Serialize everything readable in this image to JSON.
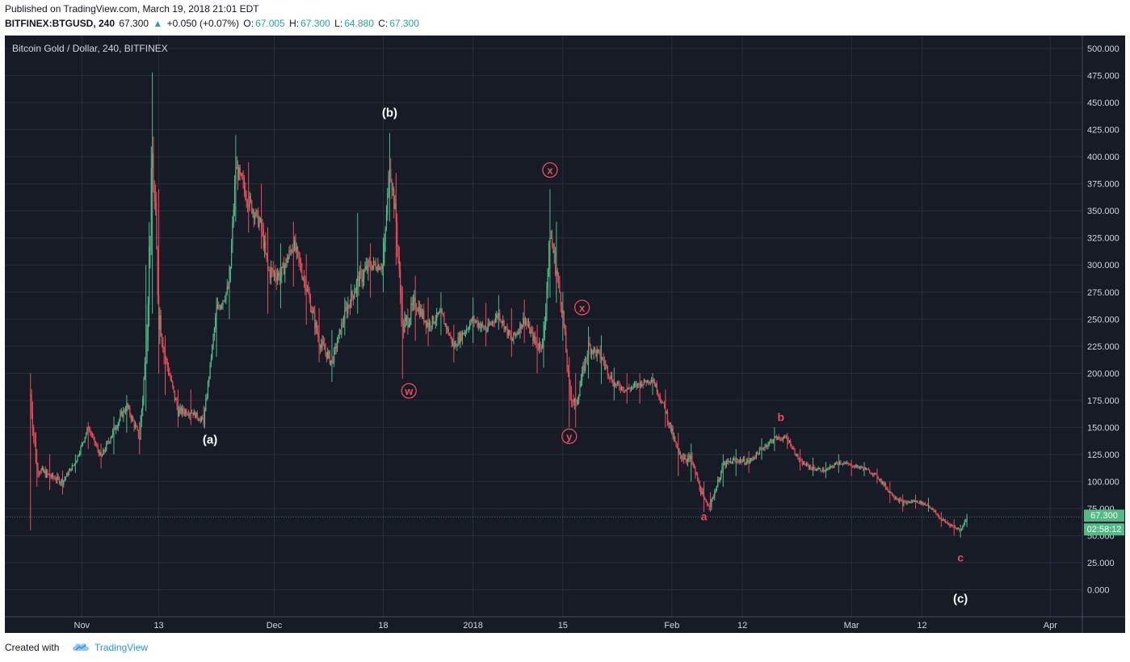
{
  "header": {
    "published": "Published on TradingView.com, March 19, 2018 21:01 EDT",
    "symbol": "BITFINEX:BTGUSD, 240",
    "last": "67.300",
    "change_arrow": "▲",
    "change": "+0.050 (+0.07%)",
    "o_label": "O:",
    "o_value": "67.005",
    "h_label": "H:",
    "h_value": "67.300",
    "l_label": "L:",
    "l_value": "64.880",
    "c_label": "C:",
    "c_value": "67.300"
  },
  "footer": {
    "created_with": "Created with",
    "brand": "TradingView",
    "logo_icon": "tradingview-cloud-icon"
  },
  "colors": {
    "background": "#171b26",
    "grid": "#2a2e39",
    "up": "#53b987",
    "down": "#eb4d5c",
    "wave_white": "#ffffff",
    "wave_red": "#eb4d5c",
    "price_tag": "#53b987"
  },
  "chart_data": {
    "type": "candlestick",
    "title": "Bitcoin Gold / Dollar, 240, BITFINEX",
    "ylim": [
      -25,
      512
    ],
    "yticks": [
      0,
      25,
      50,
      75,
      100,
      125,
      150,
      175,
      200,
      225,
      250,
      275,
      300,
      325,
      350,
      375,
      400,
      425,
      450,
      475,
      500
    ],
    "xlim": [
      "2017-10-20",
      "2018-04-06"
    ],
    "xticks": [
      {
        "date": "2017-11-01",
        "label": "Nov"
      },
      {
        "date": "2017-11-13",
        "label": "13"
      },
      {
        "date": "2017-12-01",
        "label": "Dec"
      },
      {
        "date": "2017-12-18",
        "label": "18"
      },
      {
        "date": "2018-01-01",
        "label": "2018"
      },
      {
        "date": "2018-01-15",
        "label": "15"
      },
      {
        "date": "2018-02-01",
        "label": "Feb"
      },
      {
        "date": "2018-02-12",
        "label": "12"
      },
      {
        "date": "2018-03-01",
        "label": "Mar"
      },
      {
        "date": "2018-03-12",
        "label": "12"
      },
      {
        "date": "2018-04-01",
        "label": "Apr"
      }
    ],
    "price_path": [
      {
        "date": "2017-10-24",
        "price": 180,
        "high": 200,
        "low": 55
      },
      {
        "date": "2017-10-25",
        "price": 112,
        "high": 130,
        "low": 95
      },
      {
        "date": "2017-10-27",
        "price": 105,
        "high": 125,
        "low": 92
      },
      {
        "date": "2017-10-29",
        "price": 100,
        "high": 110,
        "low": 88
      },
      {
        "date": "2017-10-31",
        "price": 118,
        "high": 125,
        "low": 108
      },
      {
        "date": "2017-11-02",
        "price": 150,
        "high": 155,
        "low": 130
      },
      {
        "date": "2017-11-04",
        "price": 122,
        "high": 135,
        "low": 112
      },
      {
        "date": "2017-11-06",
        "price": 148,
        "high": 160,
        "low": 125
      },
      {
        "date": "2017-11-08",
        "price": 170,
        "high": 180,
        "low": 145
      },
      {
        "date": "2017-11-10",
        "price": 140,
        "high": 155,
        "low": 125
      },
      {
        "date": "2017-11-11",
        "price": 220,
        "high": 300,
        "low": 165
      },
      {
        "date": "2017-11-12",
        "price": 400,
        "high": 478,
        "low": 255
      },
      {
        "date": "2017-11-13",
        "price": 260,
        "high": 370,
        "low": 200
      },
      {
        "date": "2017-11-14",
        "price": 215,
        "high": 235,
        "low": 180
      },
      {
        "date": "2017-11-16",
        "price": 165,
        "high": 185,
        "low": 150
      },
      {
        "date": "2017-11-18",
        "price": 165,
        "high": 185,
        "low": 152
      },
      {
        "date": "2017-11-20",
        "price": 155,
        "high": 170,
        "low": 150
      },
      {
        "date": "2017-11-22",
        "price": 258,
        "high": 270,
        "low": 215
      },
      {
        "date": "2017-11-24",
        "price": 280,
        "high": 300,
        "low": 250
      },
      {
        "date": "2017-11-25",
        "price": 390,
        "high": 420,
        "low": 340
      },
      {
        "date": "2017-11-27",
        "price": 360,
        "high": 395,
        "low": 330
      },
      {
        "date": "2017-11-29",
        "price": 335,
        "high": 375,
        "low": 315
      },
      {
        "date": "2017-11-30",
        "price": 295,
        "high": 335,
        "low": 255
      },
      {
        "date": "2017-12-02",
        "price": 290,
        "high": 320,
        "low": 260
      },
      {
        "date": "2017-12-04",
        "price": 320,
        "high": 340,
        "low": 280
      },
      {
        "date": "2017-12-06",
        "price": 280,
        "high": 310,
        "low": 245
      },
      {
        "date": "2017-12-08",
        "price": 230,
        "high": 260,
        "low": 210
      },
      {
        "date": "2017-12-10",
        "price": 210,
        "high": 240,
        "low": 192
      },
      {
        "date": "2017-12-12",
        "price": 255,
        "high": 270,
        "low": 235
      },
      {
        "date": "2017-12-14",
        "price": 285,
        "high": 348,
        "low": 255
      },
      {
        "date": "2017-12-16",
        "price": 300,
        "high": 320,
        "low": 270
      },
      {
        "date": "2017-12-18",
        "price": 300,
        "high": 325,
        "low": 275
      },
      {
        "date": "2017-12-19",
        "price": 395,
        "high": 422,
        "low": 340
      },
      {
        "date": "2017-12-20",
        "price": 340,
        "high": 385,
        "low": 300
      },
      {
        "date": "2017-12-21",
        "price": 240,
        "high": 280,
        "low": 195
      },
      {
        "date": "2017-12-23",
        "price": 265,
        "high": 290,
        "low": 230
      },
      {
        "date": "2017-12-25",
        "price": 245,
        "high": 270,
        "low": 225
      },
      {
        "date": "2017-12-27",
        "price": 255,
        "high": 275,
        "low": 235
      },
      {
        "date": "2017-12-29",
        "price": 225,
        "high": 245,
        "low": 210
      },
      {
        "date": "2018-01-01",
        "price": 250,
        "high": 270,
        "low": 228
      },
      {
        "date": "2018-01-03",
        "price": 240,
        "high": 265,
        "low": 225
      },
      {
        "date": "2018-01-05",
        "price": 255,
        "high": 272,
        "low": 240
      },
      {
        "date": "2018-01-07",
        "price": 230,
        "high": 260,
        "low": 215
      },
      {
        "date": "2018-01-09",
        "price": 250,
        "high": 268,
        "low": 228
      },
      {
        "date": "2018-01-11",
        "price": 225,
        "high": 245,
        "low": 200
      },
      {
        "date": "2018-01-12",
        "price": 230,
        "high": 248,
        "low": 205
      },
      {
        "date": "2018-01-13",
        "price": 330,
        "high": 370,
        "low": 270
      },
      {
        "date": "2018-01-14",
        "price": 295,
        "high": 340,
        "low": 265
      },
      {
        "date": "2018-01-15",
        "price": 255,
        "high": 275,
        "low": 230
      },
      {
        "date": "2018-01-16",
        "price": 185,
        "high": 215,
        "low": 150
      },
      {
        "date": "2018-01-17",
        "price": 170,
        "high": 200,
        "low": 150
      },
      {
        "date": "2018-01-19",
        "price": 225,
        "high": 243,
        "low": 195
      },
      {
        "date": "2018-01-21",
        "price": 215,
        "high": 235,
        "low": 190
      },
      {
        "date": "2018-01-23",
        "price": 190,
        "high": 205,
        "low": 175
      },
      {
        "date": "2018-01-25",
        "price": 185,
        "high": 200,
        "low": 172
      },
      {
        "date": "2018-01-27",
        "price": 190,
        "high": 200,
        "low": 172
      },
      {
        "date": "2018-01-29",
        "price": 195,
        "high": 200,
        "low": 180
      },
      {
        "date": "2018-01-31",
        "price": 165,
        "high": 185,
        "low": 150
      },
      {
        "date": "2018-02-02",
        "price": 125,
        "high": 145,
        "low": 105
      },
      {
        "date": "2018-02-04",
        "price": 120,
        "high": 135,
        "low": 100
      },
      {
        "date": "2018-02-06",
        "price": 82,
        "high": 100,
        "low": 72
      },
      {
        "date": "2018-02-07",
        "price": 78,
        "high": 90,
        "low": 72
      },
      {
        "date": "2018-02-09",
        "price": 115,
        "high": 125,
        "low": 95
      },
      {
        "date": "2018-02-11",
        "price": 120,
        "high": 130,
        "low": 105
      },
      {
        "date": "2018-02-13",
        "price": 118,
        "high": 128,
        "low": 108
      },
      {
        "date": "2018-02-15",
        "price": 130,
        "high": 140,
        "low": 120
      },
      {
        "date": "2018-02-17",
        "price": 140,
        "high": 150,
        "low": 128
      },
      {
        "date": "2018-02-19",
        "price": 140,
        "high": 145,
        "low": 130
      },
      {
        "date": "2018-02-21",
        "price": 118,
        "high": 130,
        "low": 110
      },
      {
        "date": "2018-02-23",
        "price": 112,
        "high": 122,
        "low": 105
      },
      {
        "date": "2018-02-25",
        "price": 110,
        "high": 118,
        "low": 103
      },
      {
        "date": "2018-02-27",
        "price": 118,
        "high": 125,
        "low": 108
      },
      {
        "date": "2018-03-01",
        "price": 115,
        "high": 120,
        "low": 105
      },
      {
        "date": "2018-03-03",
        "price": 112,
        "high": 118,
        "low": 105
      },
      {
        "date": "2018-03-05",
        "price": 105,
        "high": 112,
        "low": 98
      },
      {
        "date": "2018-03-07",
        "price": 90,
        "high": 100,
        "low": 80
      },
      {
        "date": "2018-03-09",
        "price": 80,
        "high": 88,
        "low": 72
      },
      {
        "date": "2018-03-11",
        "price": 82,
        "high": 88,
        "low": 75
      },
      {
        "date": "2018-03-13",
        "price": 78,
        "high": 85,
        "low": 72
      },
      {
        "date": "2018-03-15",
        "price": 65,
        "high": 72,
        "low": 58
      },
      {
        "date": "2018-03-17",
        "price": 58,
        "high": 65,
        "low": 50
      },
      {
        "date": "2018-03-18",
        "price": 55,
        "high": 60,
        "low": 48
      },
      {
        "date": "2018-03-19",
        "price": 67.3,
        "high": 70,
        "low": 58
      }
    ],
    "annotations": [
      {
        "text": "(a)",
        "date": "2017-11-21",
        "price": 135,
        "style": "white"
      },
      {
        "text": "(b)",
        "date": "2017-12-19",
        "price": 437,
        "style": "white"
      },
      {
        "text": "(c)",
        "date": "2018-03-18",
        "price": -12,
        "style": "white"
      },
      {
        "text": "w",
        "date": "2017-12-22",
        "price": 180,
        "style": "circle"
      },
      {
        "text": "x",
        "date": "2018-01-13",
        "price": 384,
        "style": "circle"
      },
      {
        "text": "y",
        "date": "2018-01-16",
        "price": 138,
        "style": "circle"
      },
      {
        "text": "x",
        "date": "2018-01-18",
        "price": 257,
        "style": "circle"
      },
      {
        "text": "a",
        "date": "2018-02-06",
        "price": 64,
        "style": "red"
      },
      {
        "text": "b",
        "date": "2018-02-18",
        "price": 156,
        "style": "red"
      },
      {
        "text": "c",
        "date": "2018-03-18",
        "price": 26,
        "style": "red"
      }
    ],
    "last_price_label": "67.300",
    "countdown_label": "02:58:12",
    "grid": true
  }
}
